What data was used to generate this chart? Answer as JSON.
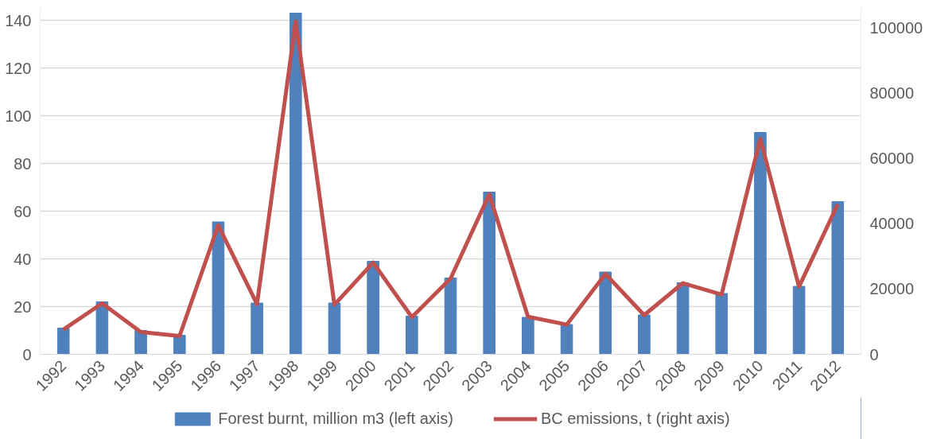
{
  "chart_data": {
    "type": "bar",
    "categories": [
      "1992",
      "1993",
      "1994",
      "1995",
      "1996",
      "1997",
      "1998",
      "1999",
      "2000",
      "2001",
      "2002",
      "2003",
      "2004",
      "2005",
      "2006",
      "2007",
      "2008",
      "2009",
      "2010",
      "2011",
      "2012"
    ],
    "series": [
      {
        "name": "Forest burnt, million m3 (left axis)",
        "color": "#4f81bd",
        "values": [
          11,
          22,
          10,
          8,
          55.5,
          21.5,
          143,
          21.5,
          39,
          16,
          32,
          68,
          15.5,
          12.5,
          34.5,
          16.5,
          30,
          25.5,
          93,
          28.5,
          64
        ]
      },
      {
        "name": "BC emissions, t (right axis)",
        "type": "line",
        "axis": "y2",
        "color": "#c0504d",
        "values": [
          7600,
          15600,
          6800,
          5600,
          39500,
          15400,
          102000,
          15200,
          28100,
          11400,
          23200,
          49000,
          11500,
          9100,
          24600,
          12000,
          21800,
          18300,
          66000,
          20700,
          46000
        ]
      }
    ],
    "ylim": [
      0,
      145
    ],
    "yticks": [
      0,
      20,
      40,
      60,
      80,
      100,
      120,
      140
    ],
    "y2lim": [
      0,
      106000
    ],
    "y2ticks": [
      0,
      20000,
      40000,
      60000,
      80000,
      100000
    ],
    "grid": "y",
    "legend": "bottom",
    "marker": "none",
    "line_style": "solid"
  }
}
